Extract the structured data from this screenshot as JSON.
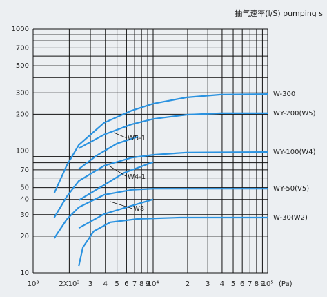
{
  "chart_data": {
    "type": "line",
    "title": "抽气速率(l/S) pumping s",
    "x_label": "(Pa)",
    "log_x": true,
    "log_y": true,
    "grid": true,
    "xlim": [
      1000,
      100000
    ],
    "ylim": [
      10,
      1000
    ],
    "xticks": [
      {
        "value": 1000,
        "label": "10³"
      },
      {
        "value": 2000,
        "label": "2X10³"
      },
      {
        "value": 3000,
        "label": "3"
      },
      {
        "value": 4000,
        "label": "4"
      },
      {
        "value": 5000,
        "label": "5"
      },
      {
        "value": 6000,
        "label": "6"
      },
      {
        "value": 7000,
        "label": "7"
      },
      {
        "value": 8000,
        "label": "8"
      },
      {
        "value": 9000,
        "label": "9"
      },
      {
        "value": 10000,
        "label": "10⁴"
      },
      {
        "value": 20000,
        "label": "2"
      },
      {
        "value": 30000,
        "label": "3"
      },
      {
        "value": 40000,
        "label": "4"
      },
      {
        "value": 50000,
        "label": "5"
      },
      {
        "value": 60000,
        "label": "6"
      },
      {
        "value": 70000,
        "label": "7"
      },
      {
        "value": 80000,
        "label": "8"
      },
      {
        "value": 90000,
        "label": "9"
      },
      {
        "value": 100000,
        "label": "10⁵"
      }
    ],
    "yticks": [
      10,
      20,
      30,
      40,
      50,
      70,
      100,
      200,
      300,
      500,
      700,
      1000
    ],
    "yminor": [
      60,
      80,
      90,
      400,
      600,
      800,
      900
    ],
    "series": [
      {
        "name": "W-300",
        "color": "#2a92e0",
        "x": [
          1500,
          1900,
          2400,
          3900,
          6600,
          10000,
          19500,
          38900,
          100000
        ],
        "values": [
          45,
          75.5,
          112,
          170,
          214,
          244,
          275,
          290,
          293
        ]
      },
      {
        "name": "WY-200(W5)",
        "color": "#2a92e0",
        "x": [
          2400,
          3900,
          6600,
          10000,
          19500,
          38900,
          100000
        ],
        "values": [
          105,
          136,
          165,
          183,
          198,
          204,
          204
        ]
      },
      {
        "name": "W5-1",
        "color": "#2a92e0",
        "x": [
          2400,
          3400,
          5000,
          7500
        ],
        "values": [
          71,
          92,
          115,
          131
        ]
      },
      {
        "name": "WY-100(W4)",
        "color": "#2a92e0",
        "x": [
          1500,
          1900,
          2400,
          3900,
          6600,
          10000,
          19500,
          100000
        ],
        "values": [
          28.4,
          42,
          56.7,
          75.5,
          88,
          93,
          97,
          98
        ]
      },
      {
        "name": "W4-1",
        "color": "#2a92e0",
        "x": [
          2400,
          3900,
          5700,
          10000
        ],
        "values": [
          39.4,
          52.5,
          66,
          81
        ]
      },
      {
        "name": "WY-50(V5)",
        "color": "#2a92e0",
        "x": [
          1500,
          1900,
          2400,
          3900,
          6600,
          10000,
          22300,
          100000
        ],
        "values": [
          19.2,
          27.3,
          34.5,
          43.6,
          48,
          49,
          49,
          49
        ]
      },
      {
        "name": "W8",
        "color": "#2a92e0",
        "x": [
          2400,
          3900,
          6600,
          10000
        ],
        "values": [
          23.3,
          30.3,
          35.5,
          40
        ]
      },
      {
        "name": "W-30(W2)",
        "color": "#2a92e0",
        "x": [
          2400,
          2600,
          3200,
          4400,
          7500,
          17000,
          100000
        ],
        "values": [
          11.4,
          16.2,
          21.9,
          26,
          27.7,
          28.4,
          28.4
        ]
      }
    ]
  }
}
